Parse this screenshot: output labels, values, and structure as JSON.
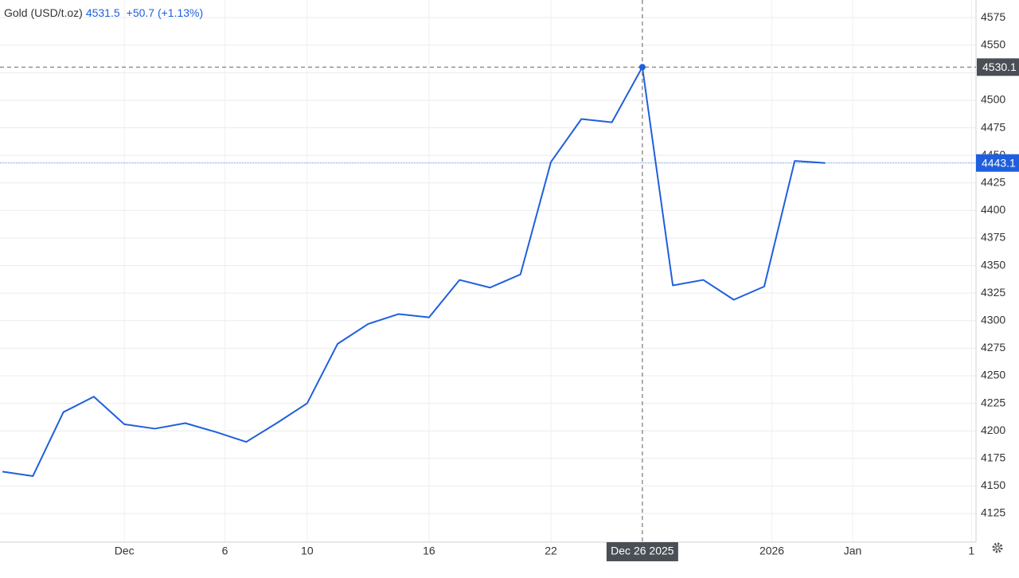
{
  "chart_data": {
    "type": "line",
    "title": "Gold (USD/t.oz)",
    "price": 4531.5,
    "change": "+50.7 (+1.13%)",
    "categories": [
      null,
      null,
      null,
      null,
      null,
      null,
      null,
      null,
      null,
      null,
      null,
      null,
      null,
      null,
      null,
      null,
      null,
      null,
      null,
      null,
      null,
      "Dec 26 2025",
      null,
      null,
      null,
      null,
      null,
      null
    ],
    "series": [
      {
        "name": "Gold",
        "color": "#1f5fde",
        "values": [
          4163,
          4159,
          4217,
          4231,
          4206,
          4202,
          4207,
          4199,
          4190,
          4207,
          4225,
          4279,
          4297,
          4306,
          4303,
          4337,
          4330,
          4342,
          4444,
          4483,
          4480,
          4530.1,
          4332,
          4337,
          4319,
          4331,
          4445,
          4443.1
        ]
      }
    ],
    "xlim": [
      -0.08,
      31.95
    ],
    "xticks": [
      {
        "value": 4,
        "label": "Dec"
      },
      {
        "value": 7.3,
        "label": "6"
      },
      {
        "value": 10,
        "label": "10"
      },
      {
        "value": 14,
        "label": "16"
      },
      {
        "value": 18,
        "label": "22"
      },
      {
        "value": 25.25,
        "label": "2026"
      },
      {
        "value": 27.9,
        "label": "Jan"
      },
      {
        "value": 31.8,
        "label": "1"
      }
    ],
    "ylim": [
      4099,
      4591
    ],
    "yticks": [
      4125,
      4150,
      4175,
      4200,
      4225,
      4250,
      4275,
      4300,
      4325,
      4350,
      4375,
      4400,
      4425,
      4450,
      4475,
      4500,
      4525,
      4550,
      4575
    ],
    "grid": true
  }
}
